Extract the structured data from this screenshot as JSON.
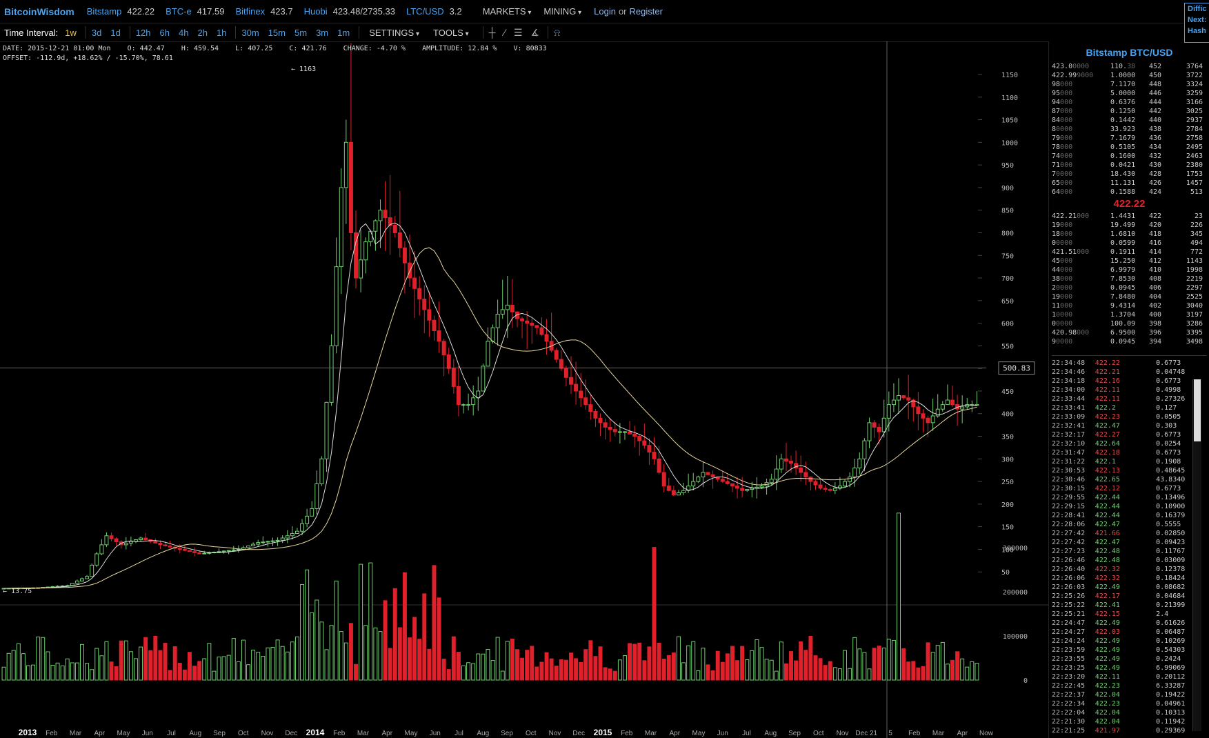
{
  "topbar": {
    "brand": "BitcoinWisdom",
    "exchanges": [
      {
        "name": "Bitstamp",
        "price": "422.22"
      },
      {
        "name": "BTC-e",
        "price": "417.59"
      },
      {
        "name": "Bitfinex",
        "price": "423.7"
      },
      {
        "name": "Huobi",
        "price": "423.48/2735.33"
      },
      {
        "name": "LTC/USD",
        "price": "3.2"
      }
    ],
    "menus": [
      "MARKETS",
      "MINING"
    ],
    "login": "Login",
    "or": "or",
    "register": "Register",
    "side_box": [
      "Diffic",
      "Next:",
      "Hash"
    ]
  },
  "toolbar": {
    "label": "Time Interval:",
    "intervals": [
      "1w",
      "3d",
      "1d",
      "12h",
      "6h",
      "4h",
      "2h",
      "1h",
      "30m",
      "15m",
      "5m",
      "3m",
      "1m"
    ],
    "active_interval": "1w",
    "settings": "SETTINGS",
    "tools": "TOOLS"
  },
  "info": {
    "line1": "DATE: 2015-12-21 01:00 Mon    O: 442.47    H: 459.54    L: 407.25    C: 421.76    CHANGE: -4.70 %    AMPLITUDE: 12.84 %    V: 80833",
    "line2": "OFFSET: -112.9d, +18.62% / -15.70%, 78.61"
  },
  "chart_data": {
    "type": "candlestick",
    "price_axis": {
      "ticks": [
        50,
        100,
        150,
        200,
        250,
        300,
        350,
        400,
        450,
        500,
        550,
        600,
        650,
        700,
        750,
        800,
        850,
        900,
        950,
        1000,
        1050,
        1100,
        1150
      ],
      "range": [
        0,
        1180
      ]
    },
    "volume_axis": {
      "ticks": [
        0,
        100000,
        200000,
        300000
      ],
      "labels": [
        "0",
        "100000",
        "200000",
        "300000"
      ],
      "range": [
        0,
        400000
      ]
    },
    "x_labels": [
      "2013",
      "Feb",
      "Mar",
      "Apr",
      "May",
      "Jun",
      "Jul",
      "Aug",
      "Sep",
      "Oct",
      "Nov",
      "Dec",
      "2014",
      "Feb",
      "Mar",
      "Apr",
      "May",
      "Jun",
      "Jul",
      "Aug",
      "Sep",
      "Oct",
      "Nov",
      "Dec",
      "2015",
      "Feb",
      "Mar",
      "Apr",
      "May",
      "Jun",
      "Jul",
      "Aug",
      "Sep",
      "Oct",
      "Nov",
      "Dec 21",
      "5",
      "Feb",
      "Mar",
      "Apr",
      "Now"
    ],
    "bold_x_labels": [
      "2013",
      "2014",
      "2015"
    ],
    "crosshair_price": "500.83",
    "crosshair_label_value": 500.83,
    "high_annotation": "1163",
    "low_annotation": "13.75",
    "keypoints": [
      [
        0,
        13.5
      ],
      [
        8,
        15
      ],
      [
        14,
        20
      ],
      [
        18,
        40
      ],
      [
        20,
        90
      ],
      [
        22,
        130
      ],
      [
        25,
        110
      ],
      [
        29,
        125
      ],
      [
        33,
        110
      ],
      [
        37,
        100
      ],
      [
        41,
        90
      ],
      [
        45,
        95
      ],
      [
        49,
        100
      ],
      [
        53,
        115
      ],
      [
        57,
        120
      ],
      [
        61,
        140
      ],
      [
        64,
        190
      ],
      [
        66,
        300
      ],
      [
        68,
        550
      ],
      [
        70,
        900
      ],
      [
        71,
        1000
      ],
      [
        72,
        800
      ],
      [
        73,
        700
      ],
      [
        75,
        780
      ],
      [
        78,
        850
      ],
      [
        81,
        800
      ],
      [
        84,
        700
      ],
      [
        87,
        630
      ],
      [
        90,
        560
      ],
      [
        92,
        500
      ],
      [
        94,
        420
      ],
      [
        96,
        420
      ],
      [
        98,
        450
      ],
      [
        100,
        560
      ],
      [
        102,
        620
      ],
      [
        104,
        640
      ],
      [
        106,
        610
      ],
      [
        108,
        600
      ],
      [
        110,
        590
      ],
      [
        112,
        560
      ],
      [
        114,
        520
      ],
      [
        116,
        480
      ],
      [
        118,
        450
      ],
      [
        120,
        420
      ],
      [
        122,
        390
      ],
      [
        124,
        370
      ],
      [
        126,
        360
      ],
      [
        128,
        360
      ],
      [
        130,
        350
      ],
      [
        132,
        330
      ],
      [
        134,
        300
      ],
      [
        136,
        240
      ],
      [
        138,
        220
      ],
      [
        140,
        230
      ],
      [
        142,
        250
      ],
      [
        144,
        270
      ],
      [
        146,
        260
      ],
      [
        148,
        250
      ],
      [
        150,
        240
      ],
      [
        152,
        230
      ],
      [
        154,
        235
      ],
      [
        156,
        240
      ],
      [
        158,
        255
      ],
      [
        160,
        300
      ],
      [
        162,
        290
      ],
      [
        164,
        270
      ],
      [
        166,
        250
      ],
      [
        168,
        235
      ],
      [
        170,
        230
      ],
      [
        172,
        240
      ],
      [
        174,
        260
      ],
      [
        176,
        300
      ],
      [
        178,
        380
      ],
      [
        180,
        360
      ],
      [
        182,
        420
      ],
      [
        184,
        440
      ],
      [
        186,
        430
      ],
      [
        188,
        400
      ],
      [
        190,
        380
      ],
      [
        192,
        410
      ],
      [
        194,
        430
      ],
      [
        196,
        410
      ],
      [
        198,
        420
      ],
      [
        200,
        420
      ]
    ],
    "ma_short_color": "#dddddd",
    "ma_long_color": "#e8d8a0",
    "up_color": "#6fd16f",
    "down_color": "#e0202a"
  },
  "orderbook": {
    "title": "Bitstamp BTC/USD",
    "asks": [
      {
        "pb": "423.0",
        "pd": "0000",
        "vb": "110.",
        "vd": "38",
        "l": "452",
        "s": "3764"
      },
      {
        "pb": "422.99",
        "pd": "9000",
        "vb": "1.0000",
        "vd": "",
        "l": "450",
        "s": "3722"
      },
      {
        "pb": "98",
        "pd": "000",
        "vb": "7.1170",
        "vd": "",
        "l": "448",
        "s": "3324"
      },
      {
        "pb": "95",
        "pd": "000",
        "vb": "5.0000",
        "vd": "",
        "l": "446",
        "s": "3259"
      },
      {
        "pb": "94",
        "pd": "000",
        "vb": "0.6376",
        "vd": "",
        "l": "444",
        "s": "3166"
      },
      {
        "pb": "87",
        "pd": "000",
        "vb": "0.1250",
        "vd": "",
        "l": "442",
        "s": "3025"
      },
      {
        "pb": "84",
        "pd": "000",
        "vb": "0.1442",
        "vd": "",
        "l": "440",
        "s": "2937"
      },
      {
        "pb": "8",
        "pd": "0000",
        "vb": "33.923",
        "vd": "",
        "l": "438",
        "s": "2784"
      },
      {
        "pb": "79",
        "pd": "000",
        "vb": "7.1679",
        "vd": "",
        "l": "436",
        "s": "2758"
      },
      {
        "pb": "78",
        "pd": "000",
        "vb": "0.5105",
        "vd": "",
        "l": "434",
        "s": "2495"
      },
      {
        "pb": "74",
        "pd": "000",
        "vb": "0.1600",
        "vd": "",
        "l": "432",
        "s": "2463"
      },
      {
        "pb": "71",
        "pd": "000",
        "vb": "0.0421",
        "vd": "",
        "l": "430",
        "s": "2380"
      },
      {
        "pb": "7",
        "pd": "0000",
        "vb": "18.430",
        "vd": "",
        "l": "428",
        "s": "1753"
      },
      {
        "pb": "65",
        "pd": "000",
        "vb": "11.131",
        "vd": "",
        "l": "426",
        "s": "1457"
      },
      {
        "pb": "64",
        "pd": "000",
        "vb": "0.1588",
        "vd": "",
        "l": "424",
        "s": "513"
      }
    ],
    "mid_price": "422.22",
    "bids": [
      {
        "pb": "422.21",
        "pd": "000",
        "vb": "1.4431",
        "vd": "",
        "l": "422",
        "s": "23"
      },
      {
        "pb": "19",
        "pd": "000",
        "vb": "19.499",
        "vd": "",
        "l": "420",
        "s": "226"
      },
      {
        "pb": "18",
        "pd": "000",
        "vb": "1.6810",
        "vd": "",
        "l": "418",
        "s": "345"
      },
      {
        "pb": "0",
        "pd": "0000",
        "vb": "0.0599",
        "vd": "",
        "l": "416",
        "s": "494"
      },
      {
        "pb": "421.51",
        "pd": "000",
        "vb": "0.1911",
        "vd": "",
        "l": "414",
        "s": "772"
      },
      {
        "pb": "45",
        "pd": "000",
        "vb": "15.250",
        "vd": "",
        "l": "412",
        "s": "1143"
      },
      {
        "pb": "44",
        "pd": "000",
        "vb": "6.9979",
        "vd": "",
        "l": "410",
        "s": "1998"
      },
      {
        "pb": "38",
        "pd": "000",
        "vb": "7.8530",
        "vd": "",
        "l": "408",
        "s": "2219"
      },
      {
        "pb": "2",
        "pd": "0000",
        "vb": "0.0945",
        "vd": "",
        "l": "406",
        "s": "2297"
      },
      {
        "pb": "19",
        "pd": "000",
        "vb": "7.8480",
        "vd": "",
        "l": "404",
        "s": "2525"
      },
      {
        "pb": "11",
        "pd": "000",
        "vb": "9.4314",
        "vd": "",
        "l": "402",
        "s": "3040"
      },
      {
        "pb": "1",
        "pd": "0000",
        "vb": "1.3704",
        "vd": "",
        "l": "400",
        "s": "3197"
      },
      {
        "pb": "0",
        "pd": "0000",
        "vb": "100.09",
        "vd": "",
        "l": "398",
        "s": "3286"
      },
      {
        "pb": "420.98",
        "pd": "000",
        "vb": "6.9500",
        "vd": "",
        "l": "396",
        "s": "3395"
      },
      {
        "pb": "9",
        "pd": "0000",
        "vb": "0.0945",
        "vd": "",
        "l": "394",
        "s": "3498"
      }
    ]
  },
  "trades": [
    {
      "t": "22:34:48",
      "p": "422.22",
      "d": "down",
      "a": "0.6773"
    },
    {
      "t": "22:34:46",
      "p": "422.21",
      "d": "down",
      "a": "0.04748"
    },
    {
      "t": "22:34:18",
      "p": "422.16",
      "d": "down",
      "a": "0.6773"
    },
    {
      "t": "22:34:00",
      "p": "422.11",
      "d": "down",
      "a": "0.4998"
    },
    {
      "t": "22:33:44",
      "p": "422.11",
      "d": "down",
      "a": "0.27326"
    },
    {
      "t": "22:33:41",
      "p": "422.2",
      "d": "up",
      "a": "0.127"
    },
    {
      "t": "22:33:09",
      "p": "422.23",
      "d": "down",
      "a": "0.0505"
    },
    {
      "t": "22:32:41",
      "p": "422.47",
      "d": "up",
      "a": "0.303"
    },
    {
      "t": "22:32:17",
      "p": "422.27",
      "d": "down",
      "a": "0.6773"
    },
    {
      "t": "22:32:10",
      "p": "422.64",
      "d": "up",
      "a": "0.0254"
    },
    {
      "t": "22:31:47",
      "p": "422.18",
      "d": "down",
      "a": "0.6773"
    },
    {
      "t": "22:31:22",
      "p": "422.1",
      "d": "up",
      "a": "0.1908"
    },
    {
      "t": "22:30:53",
      "p": "422.13",
      "d": "down",
      "a": "0.48645"
    },
    {
      "t": "22:30:46",
      "p": "422.65",
      "d": "up",
      "a": "43.8340"
    },
    {
      "t": "22:30:15",
      "p": "422.12",
      "d": "down",
      "a": "0.6773"
    },
    {
      "t": "22:29:55",
      "p": "422.44",
      "d": "up",
      "a": "0.13496"
    },
    {
      "t": "22:29:15",
      "p": "422.44",
      "d": "up",
      "a": "0.10900"
    },
    {
      "t": "22:28:41",
      "p": "422.44",
      "d": "up",
      "a": "0.16379"
    },
    {
      "t": "22:28:06",
      "p": "422.47",
      "d": "up",
      "a": "0.5555"
    },
    {
      "t": "22:27:42",
      "p": "421.66",
      "d": "down",
      "a": "0.02850"
    },
    {
      "t": "22:27:42",
      "p": "422.47",
      "d": "up",
      "a": "0.09423"
    },
    {
      "t": "22:27:23",
      "p": "422.48",
      "d": "up",
      "a": "0.11767"
    },
    {
      "t": "22:26:46",
      "p": "422.48",
      "d": "up",
      "a": "0.03009"
    },
    {
      "t": "22:26:40",
      "p": "422.32",
      "d": "down",
      "a": "0.12378"
    },
    {
      "t": "22:26:06",
      "p": "422.32",
      "d": "down",
      "a": "0.18424"
    },
    {
      "t": "22:26:03",
      "p": "422.49",
      "d": "up",
      "a": "0.08682"
    },
    {
      "t": "22:25:26",
      "p": "422.17",
      "d": "down",
      "a": "0.04684"
    },
    {
      "t": "22:25:22",
      "p": "422.41",
      "d": "up",
      "a": "0.21399"
    },
    {
      "t": "22:25:21",
      "p": "422.15",
      "d": "down",
      "a": "2.4"
    },
    {
      "t": "22:24:47",
      "p": "422.49",
      "d": "up",
      "a": "0.61626"
    },
    {
      "t": "22:24:27",
      "p": "422.03",
      "d": "down",
      "a": "0.06487"
    },
    {
      "t": "22:24:24",
      "p": "422.49",
      "d": "up",
      "a": "0.10269"
    },
    {
      "t": "22:23:59",
      "p": "422.49",
      "d": "up",
      "a": "0.54303"
    },
    {
      "t": "22:23:55",
      "p": "422.49",
      "d": "up",
      "a": "0.2424"
    },
    {
      "t": "22:23:25",
      "p": "422.49",
      "d": "up",
      "a": "6.99069"
    },
    {
      "t": "22:23:20",
      "p": "422.11",
      "d": "up",
      "a": "0.20112"
    },
    {
      "t": "22:22:45",
      "p": "422.23",
      "d": "up",
      "a": "6.33287"
    },
    {
      "t": "22:22:37",
      "p": "422.04",
      "d": "up",
      "a": "0.19422"
    },
    {
      "t": "22:22:34",
      "p": "422.23",
      "d": "up",
      "a": "0.04961"
    },
    {
      "t": "22:22:04",
      "p": "422.04",
      "d": "up",
      "a": "0.10313"
    },
    {
      "t": "22:21:30",
      "p": "422.04",
      "d": "up",
      "a": "0.11942"
    },
    {
      "t": "22:21:25",
      "p": "421.97",
      "d": "down",
      "a": "0.29369"
    }
  ]
}
